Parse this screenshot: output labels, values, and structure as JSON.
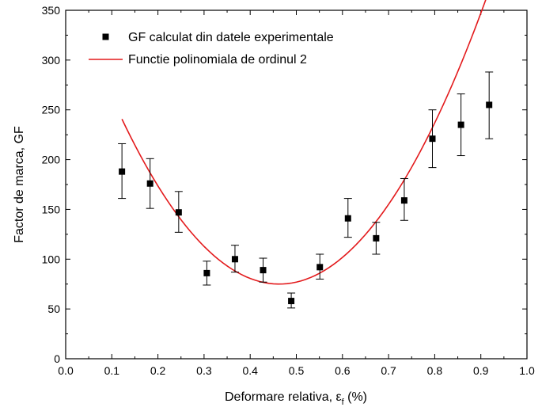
{
  "chart_data": {
    "type": "scatter",
    "xlabel_main": "Deformare relativa, ε",
    "xlabel_sub": "f",
    "xlabel_tail": " (%)",
    "ylabel": "Factor de marca, GF",
    "xlim": [
      0.0,
      1.0
    ],
    "ylim": [
      0,
      350
    ],
    "xticks": [
      "0.0",
      "0.1",
      "0.2",
      "0.3",
      "0.4",
      "0.5",
      "0.6",
      "0.7",
      "0.8",
      "0.9",
      "1.0"
    ],
    "yticks": [
      "0",
      "50",
      "100",
      "150",
      "200",
      "250",
      "300",
      "350"
    ],
    "grid": false,
    "legend_position": "top-left",
    "series": [
      {
        "name": "GF calculat din datele experimentale",
        "kind": "scatter-errorbar",
        "marker": "square",
        "color": "#000000",
        "x": [
          0.122,
          0.183,
          0.245,
          0.306,
          0.367,
          0.428,
          0.489,
          0.551,
          0.612,
          0.673,
          0.734,
          0.795,
          0.857,
          0.918
        ],
        "y": [
          188,
          176,
          147,
          86,
          100,
          89,
          58,
          92,
          141,
          121,
          159,
          221,
          235,
          255
        ],
        "y_low": [
          161,
          151,
          127,
          74,
          87,
          77,
          51,
          80,
          122,
          105,
          139,
          192,
          204,
          221
        ],
        "y_high": [
          216,
          201,
          168,
          98,
          114,
          101,
          66,
          105,
          161,
          137,
          181,
          250,
          266,
          288
        ]
      },
      {
        "name": "Functie polinomiala de ordinul 2",
        "kind": "line",
        "color": "#e31a1c",
        "x": [
          0.122,
          0.918
        ],
        "quadratic": {
          "a": 1425.0,
          "h": 0.463,
          "k": 75.0
        }
      }
    ]
  }
}
